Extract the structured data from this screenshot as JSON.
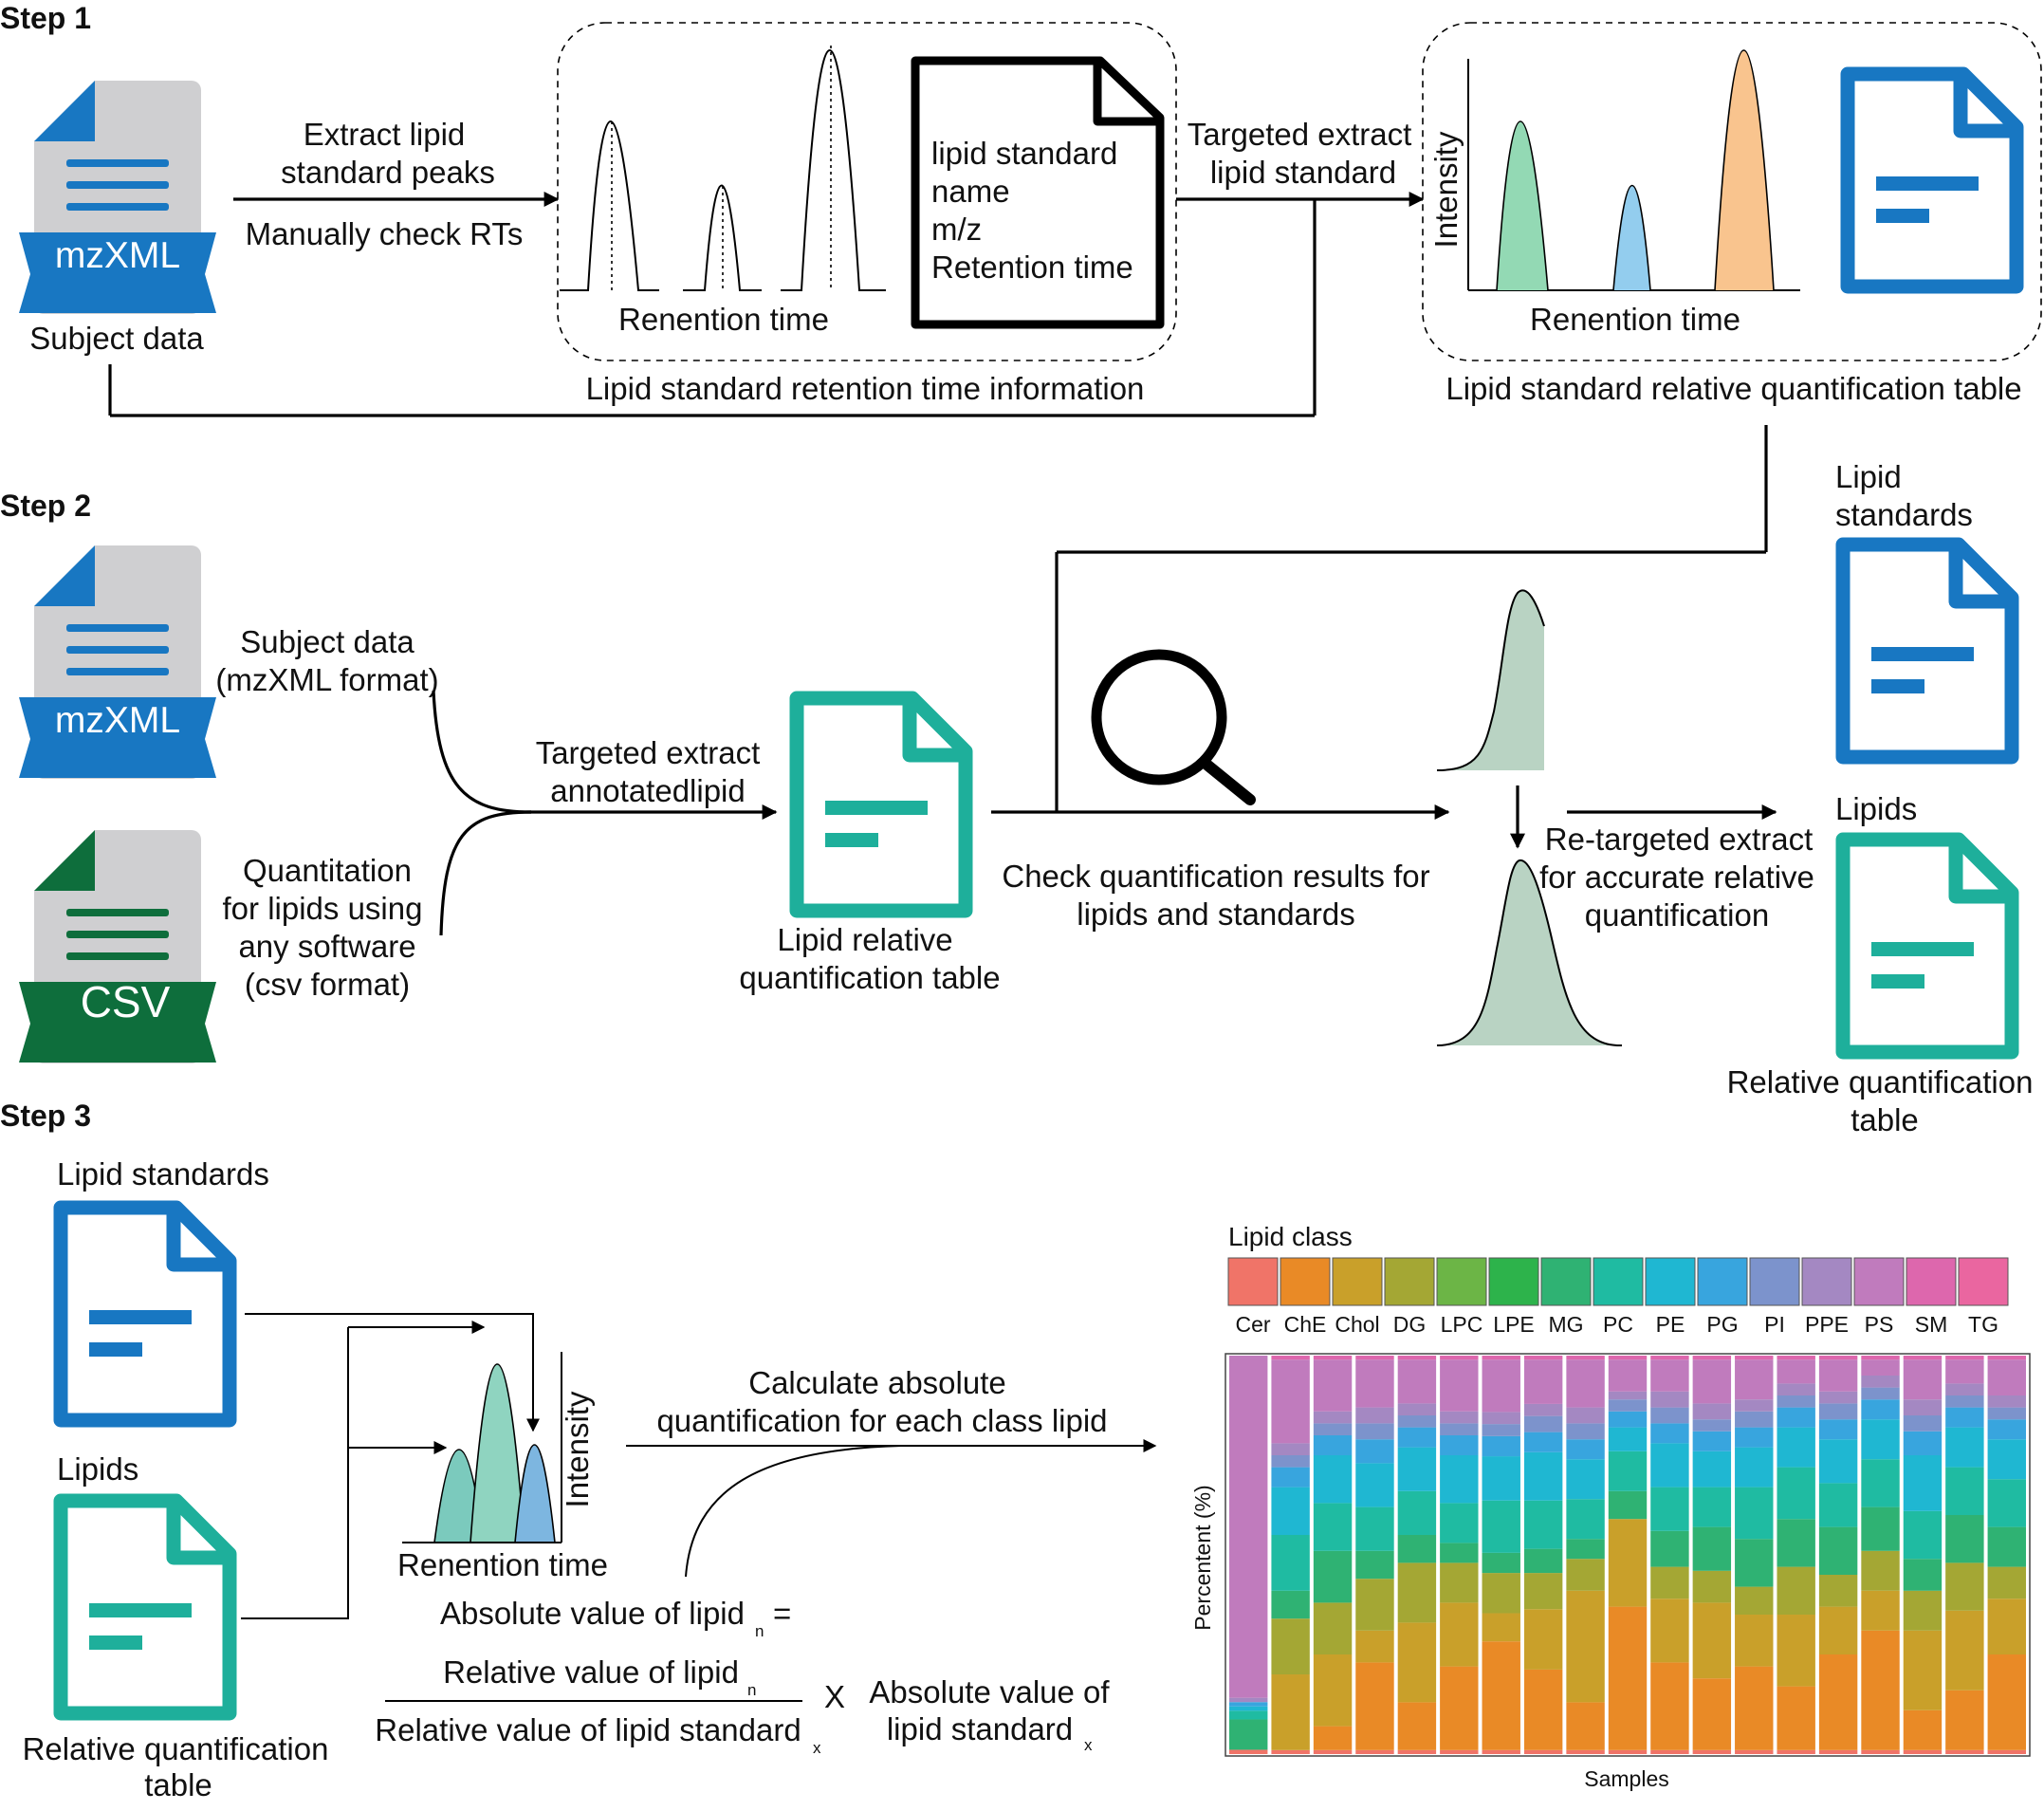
{
  "steps": {
    "step1": "Step 1",
    "step2": "Step 2",
    "step3": "Step 3"
  },
  "colors": {
    "blue": "#1877c2",
    "teal": "#1eaf9b",
    "dark_green": "#0e6e3c",
    "file_grey": "#cfcfd1",
    "peak_green": "#93d9b4",
    "peak_blue": "#93cdee",
    "peak_orange": "#f9c48e",
    "peak_sage": "#b9d3c3"
  },
  "step1": {
    "mzxml_label": "mzXML",
    "subject_data": "Subject data",
    "extract_line1": "Extract lipid",
    "extract_line2": "standard peaks",
    "manual_check": "Manually check RTs",
    "retention_axis_1": "Renention time",
    "doc_lines": [
      "lipid standard",
      "name",
      "m/z",
      "Retention time"
    ],
    "targeted_line1": "Targeted extract",
    "targeted_line2": "lipid standard",
    "intensity_axis": "Intensity",
    "retention_axis_2": "Renention time",
    "rt_info": "Lipid standard retention time information",
    "rel_quant_table": "Lipid standard relative quantification table"
  },
  "step2": {
    "mzxml_label": "mzXML",
    "csv_label": "CSV",
    "subject_line1": "Subject data",
    "subject_line2": "(mzXML format)",
    "quant_lines": [
      "Quantitation",
      "for lipids using",
      "any software",
      "(csv format)"
    ],
    "targeted_line1": "Targeted extract",
    "targeted_line2": "annotatedlipid",
    "table_line1": "Lipid relative",
    "table_line2": "quantification table",
    "check_line1": "Check quantification results for",
    "check_line2": "lipids and standards",
    "retarget_lines": [
      "Re-targeted extract",
      "for accurate relative",
      "quantification"
    ],
    "lipid_std_line1": "Lipid",
    "lipid_std_line2": "standards",
    "lipids": "Lipids",
    "rel_table_line1": "Relative quantification",
    "rel_table_line2": "table"
  },
  "step3": {
    "lipid_standards": "Lipid standards",
    "lipids": "Lipids",
    "rel_table_line1": "Relative quantification",
    "rel_table_line2": "table",
    "intensity_axis": "Intensity",
    "retention_axis": "Renention time",
    "calc_line1": "Calculate absolute",
    "calc_line2": "quantification for each class lipid",
    "formula": {
      "lhs": "Absolute value of lipid",
      "lhs_sub": "n",
      "eq": "=",
      "numerator": "Relative value of lipid",
      "numerator_sub": "n",
      "denominator": "Relative value of lipid standard",
      "denominator_sub": "x",
      "times": "X",
      "rhs_line1": "Absolute value of",
      "rhs_line2": "lipid standard",
      "rhs_sub": "x"
    }
  },
  "chart_data": {
    "type": "bar",
    "stacked": true,
    "legend_title": "Lipid class",
    "legend_placement": "top",
    "classes": [
      "Cer",
      "ChE",
      "Chol",
      "DG",
      "LPC",
      "LPE",
      "MG",
      "PC",
      "PE",
      "PG",
      "PI",
      "PPE",
      "PS",
      "SM",
      "TG"
    ],
    "class_colors": [
      "#f07468",
      "#e98a26",
      "#c9a02a",
      "#a4a734",
      "#6cb546",
      "#2db34b",
      "#2fb273",
      "#1fbba2",
      "#1fb7d2",
      "#38a5de",
      "#7c93cc",
      "#a488c2",
      "#c07bbd",
      "#dd67ad",
      "#ea66a0"
    ],
    "xlabel": "Samples",
    "ylabel": "Percentent (%)",
    "ylim": [
      0,
      100
    ],
    "samples": [
      [
        1,
        0,
        0,
        0,
        0,
        0,
        7,
        2,
        1,
        1,
        0,
        1,
        79,
        0,
        0
      ],
      [
        1,
        0,
        19,
        14,
        0,
        0,
        7,
        14,
        12,
        5,
        3,
        3,
        21,
        1,
        0
      ],
      [
        1,
        6,
        18,
        13,
        0,
        0,
        13,
        12,
        12,
        5,
        3,
        3,
        13,
        1,
        0
      ],
      [
        1,
        22,
        8,
        13,
        0,
        0,
        7,
        11,
        11,
        6,
        4,
        4,
        12,
        1,
        0
      ],
      [
        1,
        12,
        20,
        15,
        0,
        0,
        7,
        11,
        11,
        5,
        3,
        3,
        11,
        1,
        0
      ],
      [
        1,
        21,
        16,
        10,
        0,
        0,
        5,
        10,
        12,
        5,
        3,
        3,
        13,
        1,
        0
      ],
      [
        1,
        27,
        7,
        10,
        0,
        0,
        5,
        13,
        11,
        5,
        3,
        3,
        13,
        1,
        0
      ],
      [
        1,
        20,
        15,
        9,
        0,
        0,
        6,
        12,
        12,
        5,
        4,
        3,
        11,
        1,
        0
      ],
      [
        1,
        12,
        28,
        8,
        0,
        0,
        5,
        10,
        10,
        5,
        4,
        4,
        12,
        1,
        0
      ],
      [
        1,
        36,
        22,
        0,
        0,
        0,
        7,
        10,
        6,
        4,
        3,
        2,
        8,
        1,
        0
      ],
      [
        1,
        22,
        16,
        8,
        0,
        0,
        9,
        11,
        11,
        5,
        4,
        4,
        8,
        1,
        0
      ],
      [
        1,
        18,
        19,
        8,
        0,
        0,
        11,
        10,
        9,
        5,
        3,
        4,
        11,
        1,
        0
      ],
      [
        1,
        21,
        13,
        7,
        0,
        0,
        12,
        13,
        10,
        5,
        4,
        3,
        10,
        1,
        0
      ],
      [
        1,
        16,
        18,
        12,
        0,
        0,
        12,
        13,
        10,
        5,
        3,
        3,
        6,
        1,
        0
      ],
      [
        1,
        24,
        12,
        8,
        0,
        0,
        12,
        11,
        11,
        5,
        4,
        3,
        8,
        1,
        0
      ],
      [
        1,
        30,
        10,
        10,
        0,
        0,
        11,
        12,
        10,
        5,
        3,
        3,
        4,
        1,
        0
      ],
      [
        1,
        10,
        20,
        10,
        0,
        0,
        8,
        12,
        14,
        6,
        4,
        4,
        10,
        1,
        0
      ],
      [
        1,
        15,
        20,
        12,
        0,
        0,
        12,
        12,
        10,
        5,
        3,
        3,
        6,
        1,
        0
      ],
      [
        1,
        24,
        14,
        8,
        0,
        0,
        10,
        12,
        10,
        5,
        3,
        3,
        9,
        1,
        0
      ]
    ]
  }
}
